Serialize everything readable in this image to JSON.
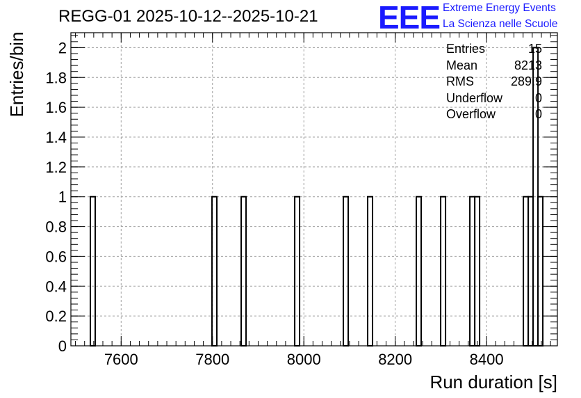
{
  "chart_data": {
    "type": "histogram",
    "title": "REGG-01 2025-10-12--2025-10-21",
    "xlabel": "Run duration [s]",
    "ylabel": "Entries/bin",
    "xlim": [
      7490,
      8555
    ],
    "ylim": [
      0,
      2.1
    ],
    "bin_width": 10.65,
    "x_ticks": [
      "7600",
      "7800",
      "8000",
      "8200",
      "8400"
    ],
    "y_ticks": [
      "0",
      "0.2",
      "0.4",
      "0.6",
      "0.8",
      "1",
      "1.2",
      "1.4",
      "1.6",
      "1.8",
      "2"
    ],
    "grid": true,
    "bins": [
      {
        "x": 7532.6,
        "count": 1
      },
      {
        "x": 7798.9,
        "count": 1
      },
      {
        "x": 7862.8,
        "count": 1
      },
      {
        "x": 7980.0,
        "count": 1
      },
      {
        "x": 8086.5,
        "count": 1
      },
      {
        "x": 8139.7,
        "count": 1
      },
      {
        "x": 8246.2,
        "count": 1
      },
      {
        "x": 8299.5,
        "count": 1
      },
      {
        "x": 8363.4,
        "count": 1
      },
      {
        "x": 8374.1,
        "count": 1
      },
      {
        "x": 8480.6,
        "count": 1
      },
      {
        "x": 8491.2,
        "count": 1
      },
      {
        "x": 8501.9,
        "count": 2
      },
      {
        "x": 8512.5,
        "count": 1
      }
    ],
    "stats": [
      {
        "label": "Entries",
        "value": "15"
      },
      {
        "label": "Mean",
        "value": "8213"
      },
      {
        "label": "RMS",
        "value": "289.9"
      },
      {
        "label": "Underflow",
        "value": "0"
      },
      {
        "label": "Overflow",
        "value": "0"
      }
    ]
  },
  "logo": {
    "mark": "EEE",
    "line1": "Extreme Energy Events",
    "line2": "La Scienza nelle Scuole",
    "color": "#1a1aff"
  }
}
